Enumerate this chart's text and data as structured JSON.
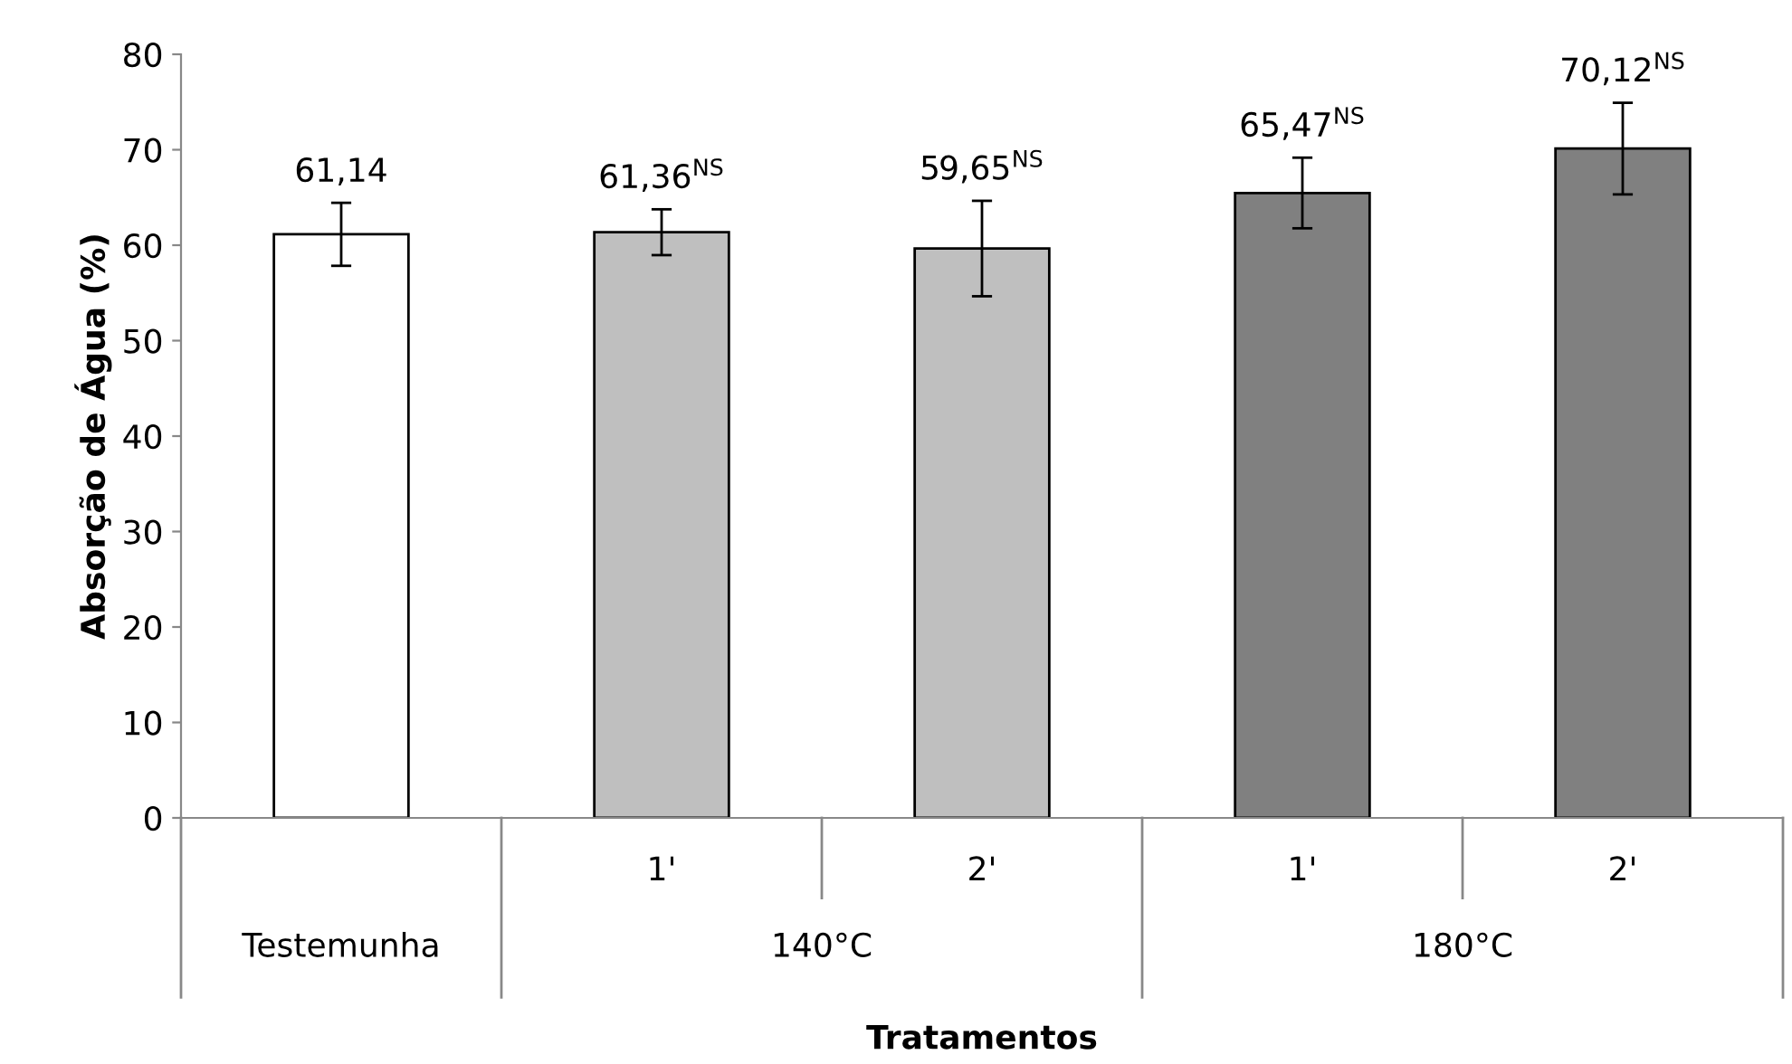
{
  "chart_data": {
    "type": "bar",
    "xlabel": "Tratamentos",
    "ylabel": "Absorção de Água (%)",
    "categories": [
      null,
      "1'",
      "2'",
      "1'",
      "2'"
    ],
    "values": [
      61.14,
      61.36,
      59.65,
      65.47,
      70.12
    ],
    "colors": [
      "#ffffff",
      "#bfbfbf",
      "#bfbfbf",
      "#808080",
      "#808080"
    ],
    "errors": [
      3.3,
      2.4,
      5.0,
      3.7,
      4.8
    ],
    "value_labels": [
      "61,14",
      "61,36$^{NS}$",
      "59,65$^{NS}$",
      "65,47$^{NS}$",
      "70,12$^{NS}$"
    ],
    "annotations": [
      "Testemunha",
      "140°C",
      "180°C"
    ],
    "ylim": [
      0,
      80
    ],
    "yticks": [
      0,
      10,
      20,
      30,
      40,
      50,
      60,
      70,
      80
    ],
    "grid": false,
    "legend": false
  }
}
